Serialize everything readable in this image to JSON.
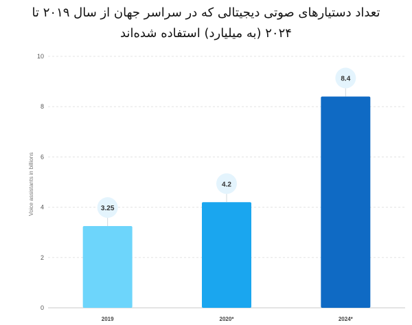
{
  "header": {
    "title_line1": "تعداد دستیارهای صوتی دیجیتالی که در سراسر جهان از سال ۲۰۱۹ تا",
    "title_line2": "۲۰۲۴ (به میلیارد) استفاده شده‌اند"
  },
  "chart_data": {
    "type": "bar",
    "categories": [
      "2019",
      "2020*",
      "2024*"
    ],
    "values": [
      3.25,
      4.2,
      8.4
    ],
    "data_labels": [
      "3.25",
      "4.2",
      "8.4"
    ],
    "ylabel": "Voice assistants in billions",
    "xlabel": "",
    "ylim": [
      0,
      10
    ],
    "yticks": [
      0,
      2,
      4,
      6,
      8,
      10
    ],
    "grid": "horizontal dashed",
    "bar_colors": [
      "#6dd5fb",
      "#1aa6ef",
      "#0f6ac4"
    ],
    "label_bubble_color": "#e4f4fd"
  }
}
